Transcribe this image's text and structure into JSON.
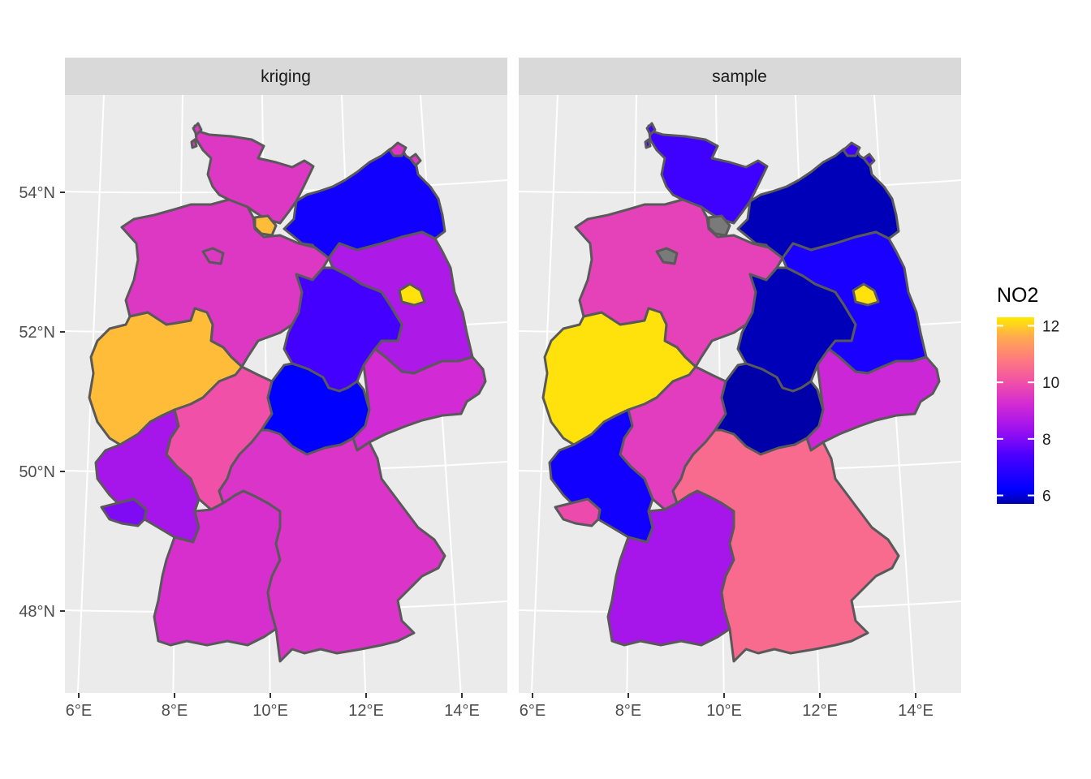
{
  "panels": [
    {
      "label": "kriging",
      "values": {
        "SH": 9.5,
        "HH": 11.8,
        "MV": 6.5,
        "NI": 9.5,
        "HB": 9.5,
        "BB": 8.6,
        "BE": 12.2,
        "ST": 7.3,
        "NW": 11.8,
        "HE": 10.0,
        "TH": 6.2,
        "SN": 9.2,
        "RP": 8.5,
        "SL": 8.0,
        "BW": 9.3,
        "BY": 9.4
      }
    },
    {
      "label": "sample",
      "values": {
        "SH": 7.2,
        "HH": null,
        "MV": 5.8,
        "NI": 9.7,
        "HB": null,
        "BB": 6.6,
        "BE": 12.2,
        "ST": 5.8,
        "NW": 12.2,
        "HE": 9.6,
        "TH": 5.7,
        "SN": 9.1,
        "RP": 6.5,
        "SL": 9.9,
        "BW": 8.5,
        "BY": 10.5
      }
    }
  ],
  "x_ticks": [
    "6°E",
    "8°E",
    "10°E",
    "12°E",
    "14°E"
  ],
  "y_ticks": [
    "54°N",
    "52°N",
    "50°N",
    "48°N"
  ],
  "legend": {
    "title": "NO2",
    "ticks": [
      {
        "value": 12,
        "label": "12"
      },
      {
        "value": 10,
        "label": "10"
      },
      {
        "value": 8,
        "label": "8"
      },
      {
        "value": 6,
        "label": "6"
      }
    ],
    "range": [
      5.7,
      12.3
    ],
    "na_color": "#7a7a7a",
    "gradient": [
      {
        "v": 5.7,
        "color": "#0000a8"
      },
      {
        "v": 6.2,
        "color": "#0000ff"
      },
      {
        "v": 7.4,
        "color": "#4a00ff"
      },
      {
        "v": 8.3,
        "color": "#9a10f0"
      },
      {
        "v": 9.2,
        "color": "#d22ad4"
      },
      {
        "v": 10.0,
        "color": "#f050a8"
      },
      {
        "v": 10.8,
        "color": "#ff7a80"
      },
      {
        "v": 11.6,
        "color": "#ffaa50"
      },
      {
        "v": 12.3,
        "color": "#ffea00"
      }
    ]
  },
  "colors": {
    "panel_bg": "#ebebeb",
    "strip_bg": "#d9d9d9",
    "border": "#595959"
  }
}
